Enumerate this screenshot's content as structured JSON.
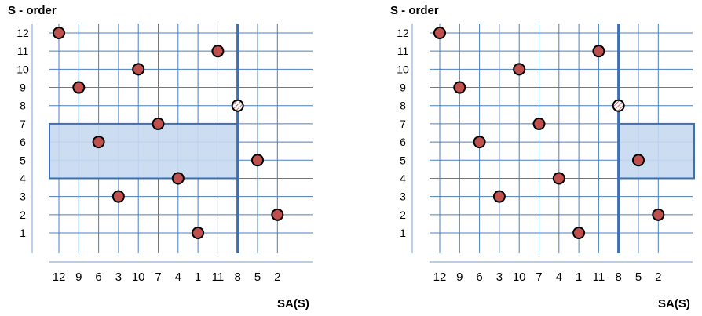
{
  "colors": {
    "grid": "#4a7fc0",
    "axis_faint": "#8fb0da",
    "divider": "#3c6fb5",
    "region_fill": "#c6d9f1",
    "region_stroke": "#3c6fb5",
    "point_fill": "#c0504d",
    "point_stroke": "#000000",
    "hatched_point_fill": "#ffffff",
    "hatched_point_stripe": "#c0504d"
  },
  "chart_data": [
    {
      "type": "scatter",
      "ylabel": "S - order",
      "xlabel": "SA(S)",
      "categories": [
        "12",
        "9",
        "6",
        "3",
        "10",
        "7",
        "4",
        "1",
        "11",
        "8",
        "5",
        "2"
      ],
      "yticks": [
        "1",
        "2",
        "3",
        "4",
        "5",
        "6",
        "7",
        "8",
        "9",
        "10",
        "11",
        "12"
      ],
      "points": [
        {
          "x": "12",
          "y": 12
        },
        {
          "x": "9",
          "y": 9
        },
        {
          "x": "6",
          "y": 6
        },
        {
          "x": "3",
          "y": 3
        },
        {
          "x": "10",
          "y": 10
        },
        {
          "x": "7",
          "y": 7
        },
        {
          "x": "4",
          "y": 4
        },
        {
          "x": "1",
          "y": 1
        },
        {
          "x": "11",
          "y": 11
        },
        {
          "x": "5",
          "y": 5
        },
        {
          "x": "2",
          "y": 2
        }
      ],
      "hatched_point": {
        "x": "8",
        "y": 8
      },
      "divider_at": "8",
      "highlight": {
        "x_from": "12",
        "x_to": "8",
        "y_from": 4,
        "y_to": 7
      }
    },
    {
      "type": "scatter",
      "ylabel": "S - order",
      "xlabel": "SA(S)",
      "categories": [
        "12",
        "9",
        "6",
        "3",
        "10",
        "7",
        "4",
        "1",
        "11",
        "8",
        "5",
        "2"
      ],
      "yticks": [
        "1",
        "2",
        "3",
        "4",
        "5",
        "6",
        "7",
        "8",
        "9",
        "10",
        "11",
        "12"
      ],
      "points": [
        {
          "x": "12",
          "y": 12
        },
        {
          "x": "9",
          "y": 9
        },
        {
          "x": "6",
          "y": 6
        },
        {
          "x": "3",
          "y": 3
        },
        {
          "x": "10",
          "y": 10
        },
        {
          "x": "7",
          "y": 7
        },
        {
          "x": "4",
          "y": 4
        },
        {
          "x": "1",
          "y": 1
        },
        {
          "x": "11",
          "y": 11
        },
        {
          "x": "5",
          "y": 5
        },
        {
          "x": "2",
          "y": 2
        }
      ],
      "hatched_point": {
        "x": "8",
        "y": 8
      },
      "divider_at": "8",
      "highlight": {
        "x_from": "8",
        "x_to": "2",
        "y_from": 4,
        "y_to": 7
      }
    }
  ]
}
